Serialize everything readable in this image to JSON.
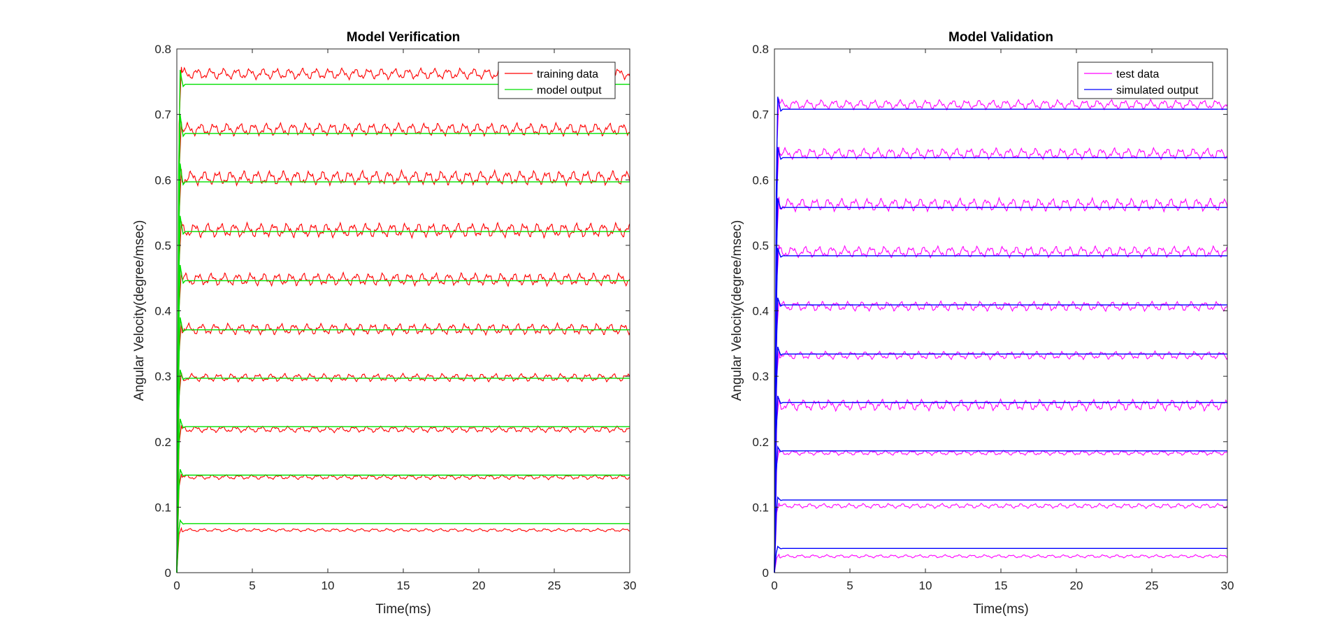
{
  "chart_data": [
    {
      "type": "line",
      "title": "Model Verification",
      "xlabel": "Time(ms)",
      "ylabel": "Angular Velocity(degree/msec)",
      "xlim": [
        0,
        30
      ],
      "ylim": [
        0,
        0.8
      ],
      "xticks": [
        0,
        5,
        10,
        15,
        20,
        25,
        30
      ],
      "yticks": [
        0,
        0.1,
        0.2,
        0.3,
        0.4,
        0.5,
        0.6,
        0.7,
        0.8
      ],
      "xtick_labels": [
        "0",
        "5",
        "10",
        "15",
        "20",
        "25",
        "30"
      ],
      "ytick_labels": [
        "0",
        "0.1",
        "0.2",
        "0.3",
        "0.4",
        "0.5",
        "0.6",
        "0.7",
        "0.8"
      ],
      "grid": false,
      "legend": "top-right",
      "series": [
        {
          "name": "training data",
          "color": "#ff0000",
          "style": "oscillating",
          "levels": [
            0.065,
            0.146,
            0.219,
            0.298,
            0.372,
            0.448,
            0.523,
            0.603,
            0.677,
            0.762
          ],
          "amplitude": [
            0.002,
            0.003,
            0.004,
            0.005,
            0.007,
            0.008,
            0.009,
            0.009,
            0.008,
            0.007
          ]
        },
        {
          "name": "model output",
          "color": "#00e000",
          "style": "step",
          "levels": [
            0.075,
            0.149,
            0.223,
            0.297,
            0.371,
            0.446,
            0.521,
            0.597,
            0.671,
            0.746
          ],
          "overshoot": [
            0.08,
            0.158,
            0.235,
            0.31,
            0.39,
            0.47,
            0.545,
            0.625,
            0.7,
            0.768
          ]
        }
      ]
    },
    {
      "type": "line",
      "title": "Model Validation",
      "xlabel": "Time(ms)",
      "ylabel": "Angular Velocity(degree/msec)",
      "xlim": [
        0,
        30
      ],
      "ylim": [
        0,
        0.8
      ],
      "xticks": [
        0,
        5,
        10,
        15,
        20,
        25,
        30
      ],
      "yticks": [
        0,
        0.1,
        0.2,
        0.3,
        0.4,
        0.5,
        0.6,
        0.7,
        0.8
      ],
      "xtick_labels": [
        "0",
        "5",
        "10",
        "15",
        "20",
        "25",
        "30"
      ],
      "ytick_labels": [
        "0",
        "0.1",
        "0.2",
        "0.3",
        "0.4",
        "0.5",
        "0.6",
        "0.7",
        "0.8"
      ],
      "grid": false,
      "legend": "top-right",
      "series": [
        {
          "name": "test data",
          "color": "#ff00ff",
          "style": "oscillating",
          "levels": [
            0.025,
            0.102,
            0.183,
            0.256,
            0.332,
            0.407,
            0.49,
            0.562,
            0.64,
            0.715
          ],
          "amplitude": [
            0.002,
            0.003,
            0.003,
            0.007,
            0.005,
            0.006,
            0.007,
            0.008,
            0.007,
            0.006
          ]
        },
        {
          "name": "simulated output",
          "color": "#0000ff",
          "style": "step",
          "levels": [
            0.037,
            0.111,
            0.186,
            0.26,
            0.334,
            0.409,
            0.484,
            0.558,
            0.634,
            0.708
          ],
          "overshoot": [
            0.04,
            0.115,
            0.192,
            0.27,
            0.345,
            0.42,
            0.496,
            0.572,
            0.65,
            0.727
          ]
        }
      ]
    }
  ]
}
